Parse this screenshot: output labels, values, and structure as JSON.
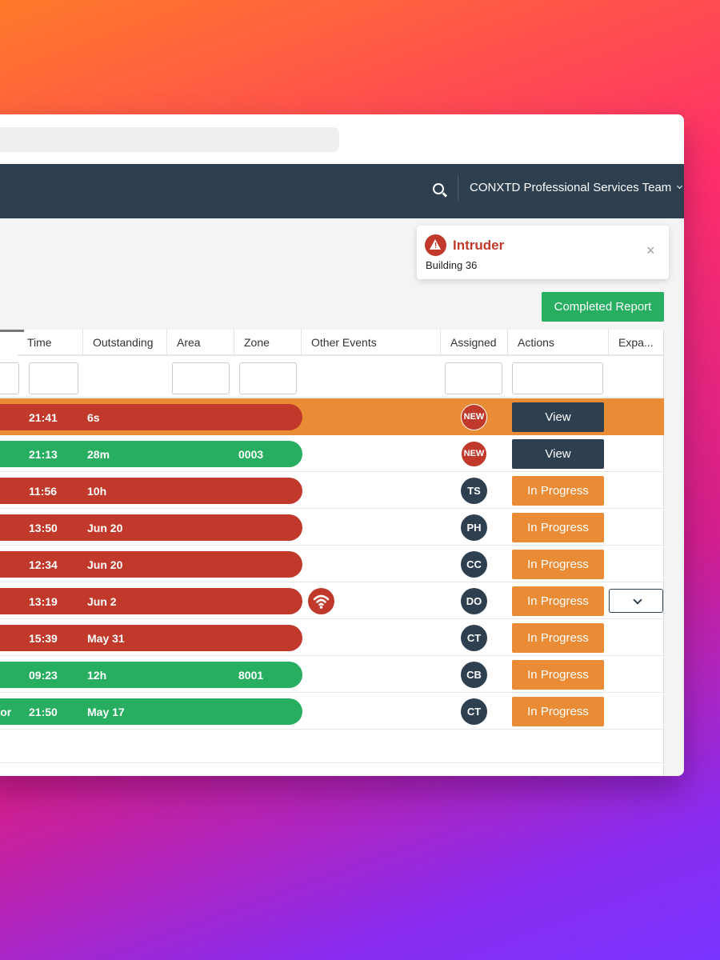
{
  "nav": {
    "search_icon": "search-icon",
    "team_name": "CONXTD Professional Services Team"
  },
  "toast": {
    "title": "Intruder",
    "subtitle": "Building 36",
    "close": "×",
    "icon": "warning-icon",
    "color": "#c0392b"
  },
  "report_button": "Completed Report",
  "table": {
    "headers": [
      "Time",
      "Outstanding",
      "Area",
      "Zone",
      "Other Events",
      "Assigned",
      "Actions",
      "Expa..."
    ],
    "rows": [
      {
        "lead": "",
        "time": "21:41",
        "outstanding": "6s",
        "zone": "",
        "status": "red",
        "assigned": "NEW",
        "action": "View",
        "highlight": true
      },
      {
        "lead": "",
        "time": "21:13",
        "outstanding": "28m",
        "zone": "0003",
        "status": "green",
        "assigned": "NEW",
        "action": "View"
      },
      {
        "lead": "",
        "time": "11:56",
        "outstanding": "10h",
        "zone": "",
        "status": "red",
        "assigned": "TS",
        "action": "In Progress"
      },
      {
        "lead": "",
        "time": "13:50",
        "outstanding": "Jun 20",
        "zone": "",
        "status": "red",
        "assigned": "PH",
        "action": "In Progress"
      },
      {
        "lead": "",
        "time": "12:34",
        "outstanding": "Jun 20",
        "zone": "",
        "status": "red",
        "assigned": "CC",
        "action": "In Progress"
      },
      {
        "lead": "",
        "time": "13:19",
        "outstanding": "Jun 2",
        "zone": "",
        "status": "red",
        "assigned": "DO",
        "action": "In Progress",
        "other_event_icon": "wifi-icon",
        "expand": true
      },
      {
        "lead": "",
        "time": "15:39",
        "outstanding": "May 31",
        "zone": "",
        "status": "red",
        "assigned": "CT",
        "action": "In Progress"
      },
      {
        "lead": "",
        "time": "09:23",
        "outstanding": "12h",
        "zone": "8001",
        "status": "green",
        "assigned": "CB",
        "action": "In Progress"
      },
      {
        "lead": "estor",
        "time": "21:50",
        "outstanding": "May 17",
        "zone": "",
        "status": "green",
        "assigned": "CT",
        "action": "In Progress"
      }
    ]
  },
  "colors": {
    "nav_bg": "#2e3f50",
    "alarm_red": "#c0392b",
    "ok_green": "#27ae60",
    "progress_orange": "#e98c35"
  }
}
